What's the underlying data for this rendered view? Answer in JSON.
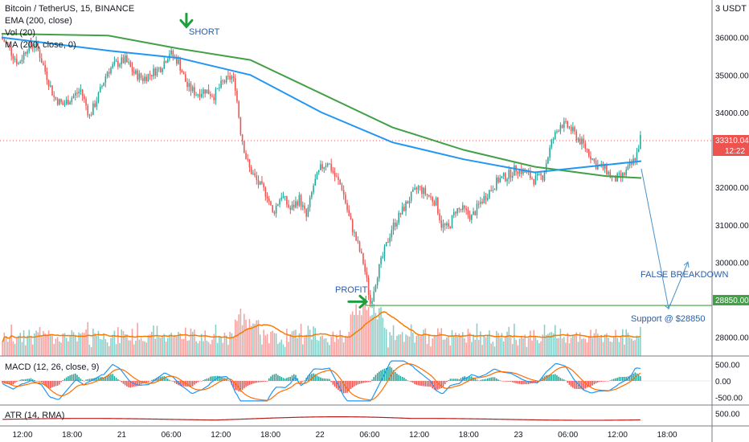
{
  "header": {
    "title": "Bitcoin / TetherUS, 15, BINANCE",
    "currency": "USDT",
    "currency_count": "3"
  },
  "legend": [
    {
      "label": "EMA (200, close)",
      "color": "#43a047"
    },
    {
      "label": "Vol (20)"
    },
    {
      "label": "MA (200, close, 0)",
      "color": "#2196f3"
    }
  ],
  "price_labels": {
    "last": "33310.04",
    "countdown": "12:22",
    "support": "28850.00"
  },
  "annotations": {
    "short": "SHORT",
    "profit": "PROFIT",
    "false_breakdown": "FALSE BREAKDOWN",
    "support": "Support @ $28850"
  },
  "panes": {
    "macd": {
      "label": "MACD (12, 26, close, 9)"
    },
    "atr": {
      "label": "ATR (14, RMA)"
    }
  },
  "colors": {
    "up": "#26a69a",
    "down": "#ef5350",
    "ema": "#43a047",
    "ma": "#2196f3",
    "vol_ma": "#f57c00",
    "macd": "#2196f3",
    "signal": "#ff6d00",
    "atr": "#b71c1c",
    "arrow": "#1e9e3e",
    "support_line": "#43a047",
    "annotation_text": "#2a5ea8",
    "projection": "#4a90c8"
  },
  "chart_data": {
    "type": "candlestick",
    "price_axis": {
      "ticks": [
        28000,
        29000,
        30000,
        31000,
        32000,
        33000,
        34000,
        35000,
        36000
      ],
      "tick_labels": [
        "28000.00",
        "29000.00",
        "30000.00",
        "31000.00",
        "32000.00",
        "33000.00",
        "34000.00",
        "35000.00",
        "36000.00"
      ],
      "range": [
        27500,
        37000
      ]
    },
    "time_axis": {
      "ticks": [
        "12:00",
        "18:00",
        "21",
        "06:00",
        "12:00",
        "18:00",
        "22",
        "06:00",
        "12:00",
        "18:00",
        "23",
        "06:00",
        "12:00",
        "18:00"
      ]
    },
    "price_path": [
      [
        0,
        36000
      ],
      [
        3,
        35850
      ],
      [
        6,
        35600
      ],
      [
        10,
        35300
      ],
      [
        15,
        35750
      ],
      [
        20,
        35800
      ],
      [
        25,
        35100
      ],
      [
        30,
        34400
      ],
      [
        35,
        34200
      ],
      [
        40,
        34400
      ],
      [
        45,
        34600
      ],
      [
        50,
        33900
      ],
      [
        55,
        34450
      ],
      [
        60,
        35100
      ],
      [
        65,
        35300
      ],
      [
        70,
        35400
      ],
      [
        75,
        35050
      ],
      [
        80,
        34900
      ],
      [
        85,
        35050
      ],
      [
        90,
        35200
      ],
      [
        95,
        35600
      ],
      [
        100,
        35350
      ],
      [
        105,
        34700
      ],
      [
        110,
        34500
      ],
      [
        115,
        34600
      ],
      [
        120,
        34450
      ],
      [
        125,
        34800
      ],
      [
        130,
        34950
      ],
      [
        132,
        34700
      ],
      [
        135,
        33500
      ],
      [
        138,
        32800
      ],
      [
        140,
        32500
      ],
      [
        145,
        32100
      ],
      [
        150,
        31800
      ],
      [
        153,
        31300
      ],
      [
        158,
        31800
      ],
      [
        163,
        31400
      ],
      [
        168,
        31700
      ],
      [
        172,
        31200
      ],
      [
        176,
        32050
      ],
      [
        180,
        32500
      ],
      [
        184,
        32700
      ],
      [
        188,
        32300
      ],
      [
        192,
        32000
      ],
      [
        196,
        31200
      ],
      [
        200,
        30600
      ],
      [
        204,
        30000
      ],
      [
        206,
        29500
      ],
      [
        208,
        28900
      ],
      [
        210,
        29300
      ],
      [
        212,
        29700
      ],
      [
        216,
        30300
      ],
      [
        220,
        30900
      ],
      [
        225,
        31300
      ],
      [
        230,
        31700
      ],
      [
        235,
        32000
      ],
      [
        240,
        31800
      ],
      [
        245,
        31600
      ],
      [
        248,
        31000
      ],
      [
        252,
        30900
      ],
      [
        256,
        31400
      ],
      [
        260,
        31400
      ],
      [
        265,
        31200
      ],
      [
        270,
        31600
      ],
      [
        275,
        31900
      ],
      [
        280,
        32200
      ],
      [
        285,
        32300
      ],
      [
        290,
        32500
      ],
      [
        295,
        32400
      ],
      [
        300,
        32200
      ],
      [
        305,
        32300
      ],
      [
        310,
        33200
      ],
      [
        315,
        33700
      ],
      [
        320,
        33600
      ],
      [
        325,
        33300
      ],
      [
        330,
        33000
      ],
      [
        335,
        32600
      ],
      [
        340,
        32500
      ],
      [
        345,
        32200
      ],
      [
        350,
        32300
      ],
      [
        355,
        32600
      ],
      [
        358,
        32900
      ],
      [
        360,
        33310
      ]
    ],
    "ema_200": {
      "x": [
        0,
        60,
        100,
        140,
        180,
        220,
        260,
        300,
        340,
        360
      ],
      "y": [
        36100,
        36050,
        35700,
        35400,
        34500,
        33600,
        33000,
        32550,
        32300,
        32250
      ]
    },
    "ma_200": {
      "x": [
        0,
        60,
        100,
        140,
        180,
        220,
        260,
        300,
        340,
        360
      ],
      "y": [
        36000,
        35650,
        35450,
        35000,
        34000,
        33200,
        32750,
        32400,
        32600,
        32700
      ]
    },
    "volume": {
      "ma_level_shape": "rises mid-chart around the sell-off then eases"
    },
    "macd": {
      "ticks": [
        500,
        0,
        -500
      ],
      "tick_labels": [
        "500.00",
        "0.00",
        "-500.00"
      ],
      "range": [
        -700,
        700
      ]
    },
    "atr": {
      "ticks": [
        500
      ],
      "tick_labels": [
        "500.00"
      ],
      "range": [
        0,
        800
      ]
    },
    "support_level": 28850,
    "markers": [
      {
        "type": "arrow-down",
        "at_bar": 104,
        "price": 36200
      },
      {
        "type": "arrow-right",
        "at_bar": 208,
        "price": 28950
      }
    ]
  }
}
